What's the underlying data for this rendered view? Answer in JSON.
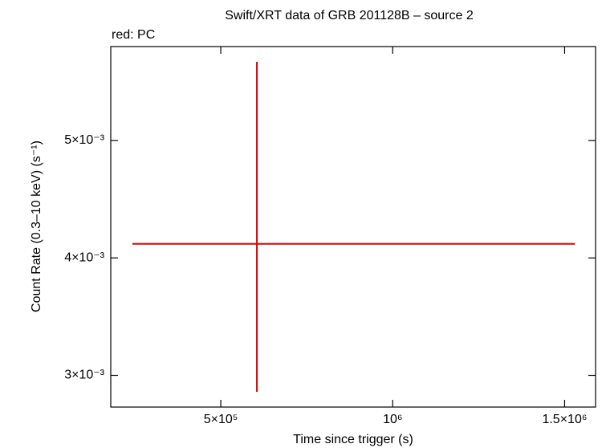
{
  "chart_data": {
    "type": "errorbar",
    "title": "Swift/XRT data of GRB 201128B – source 2",
    "subtitle": "red: PC",
    "x_label": "Time since trigger (s)",
    "y_label": "Count Rate (0.3–10 keV) (s⁻¹)",
    "series": [
      {
        "name": "PC",
        "color": "#e00000",
        "x": [
          605000
        ],
        "x_lower": [
          243000
        ],
        "x_upper": [
          1530000
        ],
        "values": [
          0.00412
        ],
        "y_lower": [
          0.00286
        ],
        "y_upper": [
          0.00567
        ]
      }
    ],
    "xlim": [
      180000,
      1590000
    ],
    "xticks": [
      {
        "value": 500000,
        "label": "5×10⁵"
      },
      {
        "value": 1000000,
        "label": "10⁶"
      },
      {
        "value": 1500000,
        "label": "1.5×10⁶"
      }
    ],
    "ylim": [
      0.00273,
      0.0058
    ],
    "yticks": [
      {
        "value": 0.003,
        "label": "3×10⁻³"
      },
      {
        "value": 0.004,
        "label": "4×10⁻³"
      },
      {
        "value": 0.005,
        "label": "5×10⁻³"
      }
    ]
  }
}
